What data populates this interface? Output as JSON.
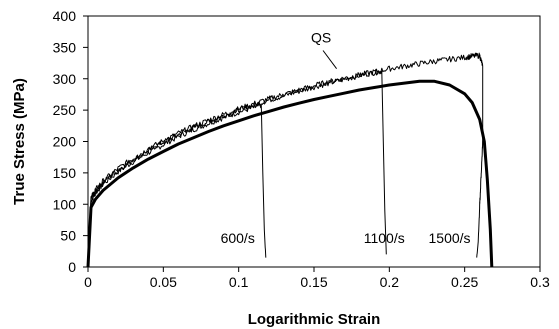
{
  "chart_data": {
    "type": "line",
    "xlabel": "Logarithmic Strain",
    "ylabel": "True Stress (MPa)",
    "xlim": [
      0,
      0.3
    ],
    "ylim": [
      0,
      400
    ],
    "x_ticks": [
      0,
      0.05,
      0.1,
      0.15,
      0.2,
      0.25,
      0.3
    ],
    "x_tick_labels": [
      "0",
      "0.05",
      "0.1",
      "0.15",
      "0.2",
      "0.25",
      "0.3"
    ],
    "y_ticks": [
      0,
      50,
      100,
      150,
      200,
      250,
      300,
      350,
      400
    ],
    "y_tick_labels": [
      "0",
      "50",
      "100",
      "150",
      "200",
      "250",
      "300",
      "350",
      "400"
    ],
    "grid": false,
    "series": [
      {
        "name": "QS",
        "style": "thick",
        "points": [
          [
            0,
            0
          ],
          [
            0.002,
            95
          ],
          [
            0.005,
            108
          ],
          [
            0.01,
            122
          ],
          [
            0.02,
            142
          ],
          [
            0.03,
            158
          ],
          [
            0.04,
            172
          ],
          [
            0.05,
            184
          ],
          [
            0.06,
            196
          ],
          [
            0.07,
            206
          ],
          [
            0.08,
            216
          ],
          [
            0.09,
            225
          ],
          [
            0.1,
            233
          ],
          [
            0.11,
            241
          ],
          [
            0.12,
            248
          ],
          [
            0.13,
            255
          ],
          [
            0.14,
            261
          ],
          [
            0.15,
            267
          ],
          [
            0.16,
            272
          ],
          [
            0.17,
            277
          ],
          [
            0.18,
            282
          ],
          [
            0.19,
            286
          ],
          [
            0.2,
            290
          ],
          [
            0.21,
            293
          ],
          [
            0.22,
            296
          ],
          [
            0.23,
            296
          ],
          [
            0.24,
            290
          ],
          [
            0.25,
            276
          ],
          [
            0.255,
            262
          ],
          [
            0.26,
            235
          ],
          [
            0.263,
            200
          ],
          [
            0.265,
            140
          ],
          [
            0.267,
            60
          ],
          [
            0.268,
            0
          ]
        ]
      },
      {
        "name": "600/s",
        "style": "thin",
        "points": [
          [
            0,
            0
          ],
          [
            0.002,
            105
          ],
          [
            0.005,
            118
          ],
          [
            0.01,
            132
          ],
          [
            0.02,
            152
          ],
          [
            0.03,
            168
          ],
          [
            0.04,
            182
          ],
          [
            0.05,
            195
          ],
          [
            0.06,
            208
          ],
          [
            0.07,
            219
          ],
          [
            0.08,
            229
          ],
          [
            0.09,
            238
          ],
          [
            0.1,
            247
          ],
          [
            0.11,
            254
          ],
          [
            0.115,
            258
          ],
          [
            0.116,
            150
          ],
          [
            0.117,
            60
          ],
          [
            0.118,
            15
          ]
        ]
      },
      {
        "name": "1100/s",
        "style": "thin",
        "points": [
          [
            0,
            0
          ],
          [
            0.002,
            108
          ],
          [
            0.005,
            121
          ],
          [
            0.01,
            135
          ],
          [
            0.02,
            155
          ],
          [
            0.03,
            171
          ],
          [
            0.04,
            186
          ],
          [
            0.05,
            199
          ],
          [
            0.06,
            211
          ],
          [
            0.07,
            222
          ],
          [
            0.08,
            232
          ],
          [
            0.09,
            241
          ],
          [
            0.1,
            250
          ],
          [
            0.11,
            258
          ],
          [
            0.12,
            266
          ],
          [
            0.13,
            273
          ],
          [
            0.14,
            280
          ],
          [
            0.15,
            287
          ],
          [
            0.16,
            293
          ],
          [
            0.17,
            299
          ],
          [
            0.18,
            305
          ],
          [
            0.19,
            310
          ],
          [
            0.195,
            312
          ],
          [
            0.196,
            200
          ],
          [
            0.197,
            90
          ],
          [
            0.198,
            20
          ]
        ]
      },
      {
        "name": "1500/s",
        "style": "thin",
        "points": [
          [
            0,
            0
          ],
          [
            0.002,
            110
          ],
          [
            0.005,
            123
          ],
          [
            0.01,
            137
          ],
          [
            0.02,
            157
          ],
          [
            0.03,
            173
          ],
          [
            0.04,
            188
          ],
          [
            0.05,
            201
          ],
          [
            0.06,
            213
          ],
          [
            0.07,
            224
          ],
          [
            0.08,
            234
          ],
          [
            0.09,
            243
          ],
          [
            0.1,
            252
          ],
          [
            0.11,
            260
          ],
          [
            0.12,
            268
          ],
          [
            0.13,
            275
          ],
          [
            0.14,
            282
          ],
          [
            0.15,
            289
          ],
          [
            0.16,
            295
          ],
          [
            0.17,
            301
          ],
          [
            0.18,
            306
          ],
          [
            0.19,
            311
          ],
          [
            0.2,
            316
          ],
          [
            0.21,
            320
          ],
          [
            0.22,
            324
          ],
          [
            0.23,
            328
          ],
          [
            0.24,
            331
          ],
          [
            0.25,
            334
          ],
          [
            0.255,
            336
          ],
          [
            0.26,
            337
          ],
          [
            0.262,
            320
          ],
          [
            0.262,
            200
          ],
          [
            0.261,
            150
          ],
          [
            0.26,
            100
          ],
          [
            0.259,
            40
          ],
          [
            0.258,
            15
          ]
        ]
      }
    ],
    "annotations": [
      {
        "text": "QS",
        "x": 0.148,
        "y": 358
      },
      {
        "text": "600/s",
        "x": 0.088,
        "y": 38
      },
      {
        "text": "1100/s",
        "x": 0.183,
        "y": 38
      },
      {
        "text": "1500/s",
        "x": 0.226,
        "y": 38
      }
    ]
  }
}
